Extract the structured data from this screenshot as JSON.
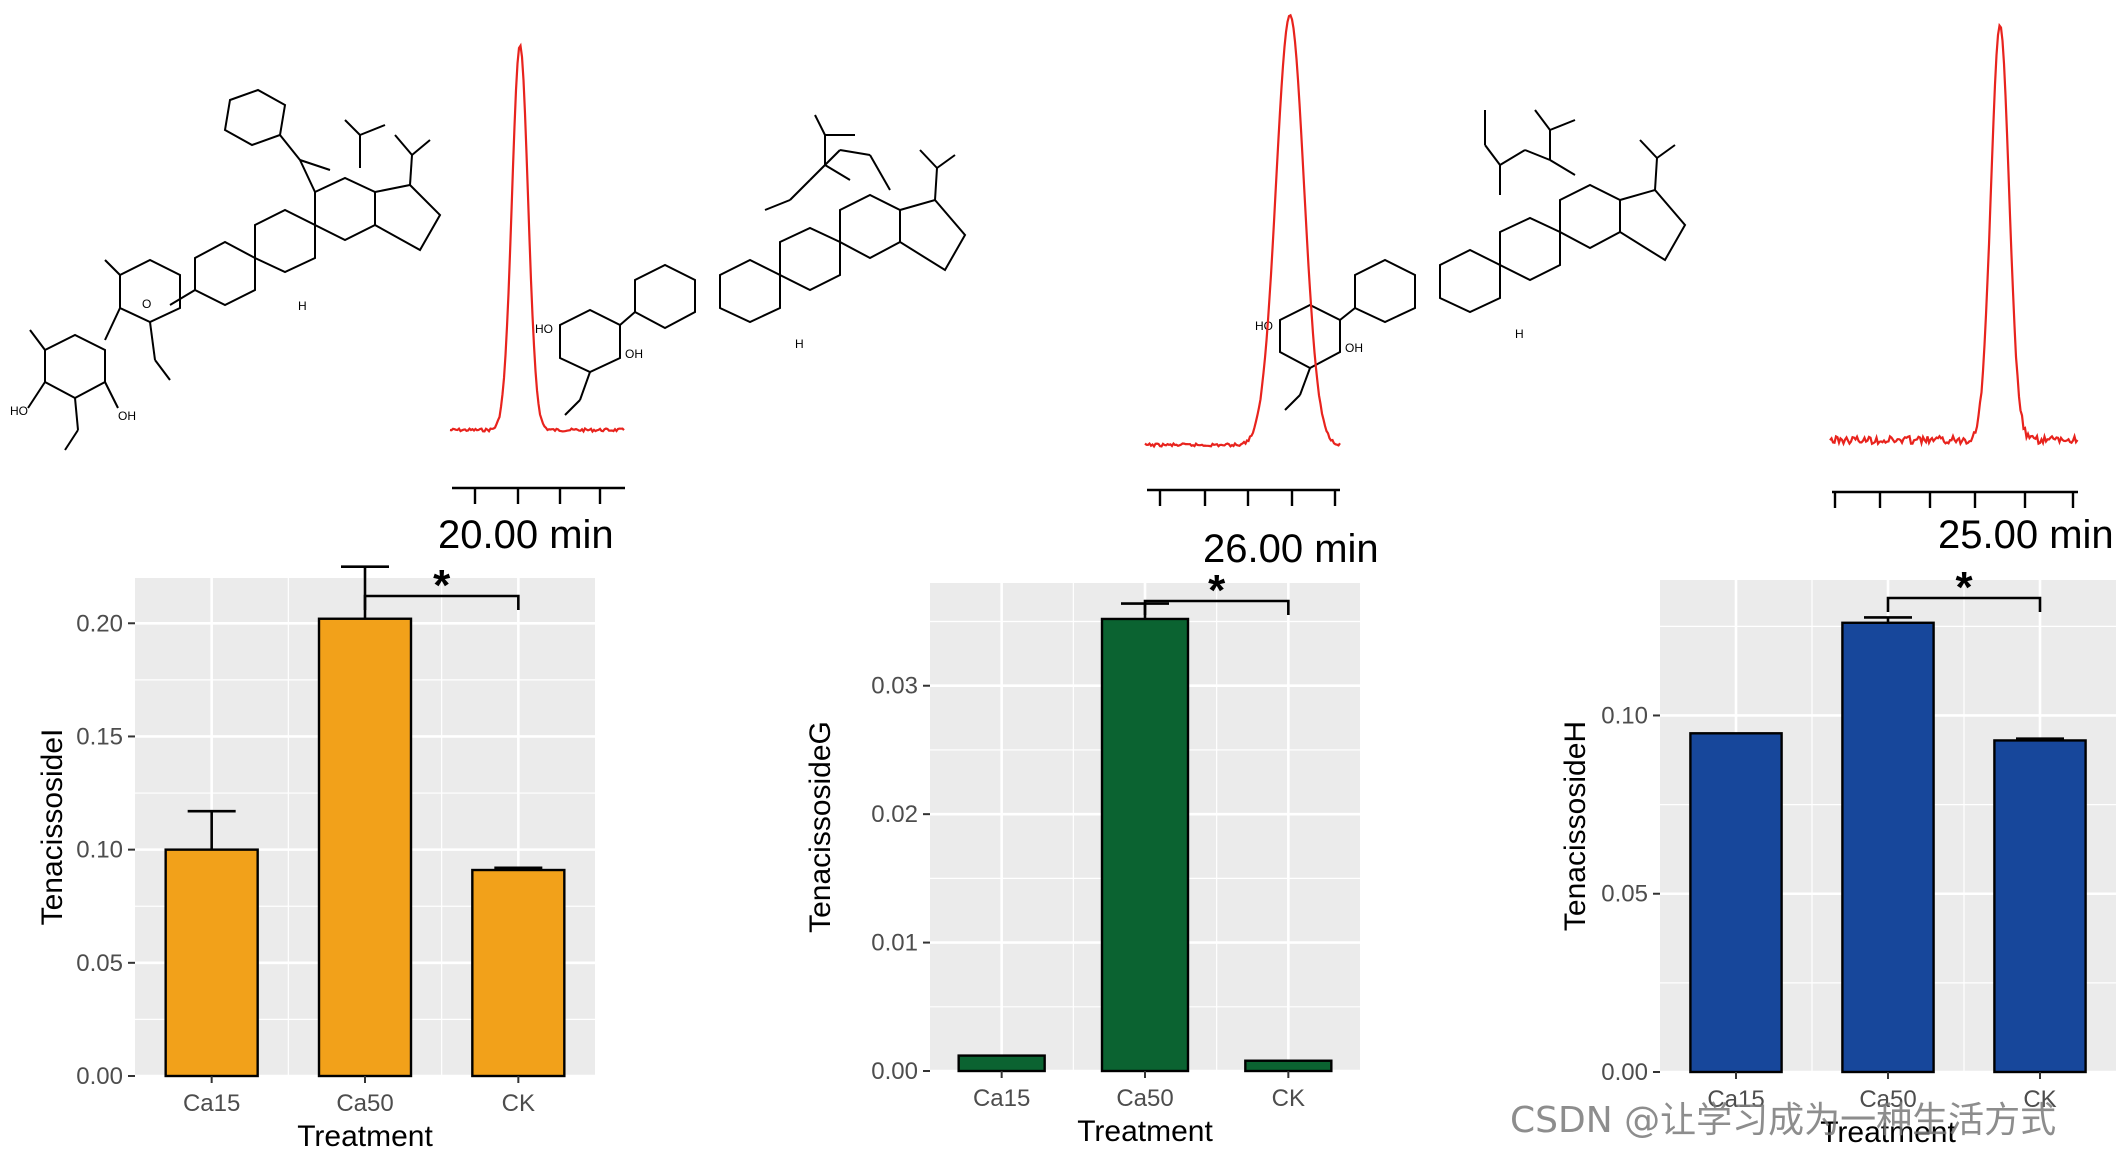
{
  "chart_data": [
    {
      "type": "bar",
      "categories": [
        "Ca15",
        "Ca50",
        "CK"
      ],
      "values": [
        0.1,
        0.202,
        0.091
      ],
      "errors": [
        0.017,
        0.023,
        0.001
      ],
      "xlabel": "Treatment",
      "ylabel": "TenacissosideI",
      "ylim": [
        0,
        0.22
      ],
      "yticks": [
        0.0,
        0.05,
        0.1,
        0.15,
        0.2
      ],
      "ytick_labels": [
        "0.00",
        "0.05",
        "0.10",
        "0.15",
        "0.20"
      ],
      "bar_color": "#f2a11a",
      "significance": {
        "from": "Ca50",
        "to": "CK",
        "label": "*"
      },
      "chromatogram": {
        "retention_time": 20.0,
        "time_label": "20.00 min"
      }
    },
    {
      "type": "bar",
      "categories": [
        "Ca15",
        "Ca50",
        "CK"
      ],
      "values": [
        0.0012,
        0.0352,
        0.0008
      ],
      "errors": [
        0.0,
        0.0012,
        0.0
      ],
      "xlabel": "Treatment",
      "ylabel": "TenacissosideG",
      "ylim": [
        0,
        0.038
      ],
      "yticks": [
        0.0,
        0.01,
        0.02,
        0.03
      ],
      "ytick_labels": [
        "0.00",
        "0.01",
        "0.02",
        "0.03"
      ],
      "bar_color": "#0b6331",
      "significance": {
        "from": "Ca50",
        "to": "CK",
        "label": "*"
      },
      "chromatogram": {
        "retention_time": 26.0,
        "time_label": "26.00 min"
      }
    },
    {
      "type": "bar",
      "categories": [
        "Ca15",
        "Ca50",
        "CK"
      ],
      "values": [
        0.095,
        0.126,
        0.093
      ],
      "errors": [
        0.0,
        0.0015,
        0.0005
      ],
      "xlabel": "Treatment",
      "ylabel": "TenacissosideH",
      "ylim": [
        0,
        0.138
      ],
      "yticks": [
        0.0,
        0.05,
        0.1
      ],
      "ytick_labels": [
        "0.00",
        "0.05",
        "0.10"
      ],
      "bar_color": "#17479b",
      "significance": {
        "from": "Ca50",
        "to": "CK",
        "label": "*"
      },
      "chromatogram": {
        "retention_time": 25.0,
        "time_label": "25.00 min"
      }
    }
  ],
  "structure_labels": {
    "hydroxyl": "HO",
    "hydroxyl_right": "OH",
    "hydrogen": "H"
  },
  "watermark": "CSDN @让学习成为一种生活方式"
}
